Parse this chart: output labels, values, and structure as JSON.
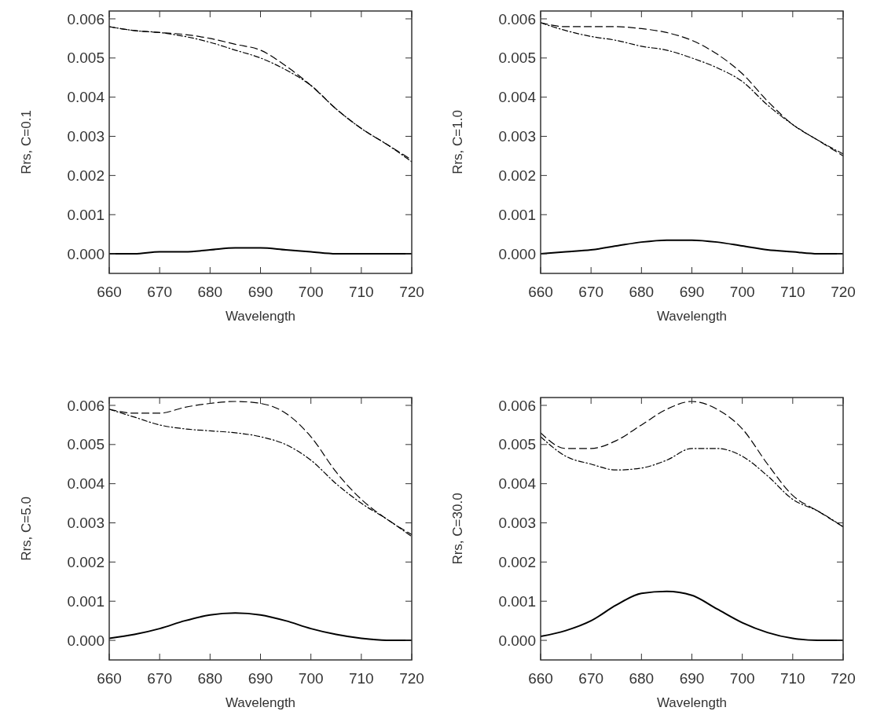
{
  "chart_data": [
    {
      "type": "line",
      "xlabel": "Wavelength",
      "ylabel": "Rrs,  C=0.1",
      "x": [
        660,
        665,
        670,
        675,
        680,
        685,
        690,
        695,
        700,
        705,
        710,
        715,
        720
      ],
      "xlim": [
        660,
        720
      ],
      "xticks": [
        660,
        670,
        680,
        690,
        700,
        710,
        720
      ],
      "ylim": [
        -0.0005,
        0.0062
      ],
      "yticks": [
        {
          "value": 0,
          "label": "0.000"
        },
        {
          "value": 0.001,
          "label": "0.001"
        },
        {
          "value": 0.002,
          "label": "0.002"
        },
        {
          "value": 0.003,
          "label": "0.003"
        },
        {
          "value": 0.004,
          "label": "0.004"
        },
        {
          "value": 0.005,
          "label": "0.005"
        },
        {
          "value": 0.006,
          "label": "0.006"
        }
      ],
      "grid": false,
      "series": [
        {
          "color": "#000000",
          "line_style": "dashed",
          "values": [
            0.0058,
            0.0057,
            0.00565,
            0.0056,
            0.0055,
            0.00535,
            0.0052,
            0.0048,
            0.0043,
            0.0037,
            0.0032,
            0.0028,
            0.0024
          ]
        },
        {
          "color": "#000000",
          "line_style": "dashdot",
          "values": [
            0.0058,
            0.0057,
            0.00565,
            0.00555,
            0.0054,
            0.0052,
            0.005,
            0.0047,
            0.0043,
            0.0037,
            0.0032,
            0.0028,
            0.00235
          ]
        },
        {
          "color": "#000000",
          "line_style": "solid",
          "values": [
            0,
            0,
            5e-05,
            5e-05,
            0.0001,
            0.00015,
            0.00015,
            0.0001,
            5e-05,
            0,
            0,
            0,
            0
          ]
        }
      ]
    },
    {
      "type": "line",
      "xlabel": "Wavelength",
      "ylabel": "Rrs,  C=1.0",
      "x": [
        660,
        665,
        670,
        675,
        680,
        685,
        690,
        695,
        700,
        705,
        710,
        715,
        720
      ],
      "xlim": [
        660,
        720
      ],
      "xticks": [
        660,
        670,
        680,
        690,
        700,
        710,
        720
      ],
      "ylim": [
        -0.0005,
        0.0062
      ],
      "yticks": [
        {
          "value": 0,
          "label": "0.000"
        },
        {
          "value": 0.001,
          "label": "0.001"
        },
        {
          "value": 0.002,
          "label": "0.002"
        },
        {
          "value": 0.003,
          "label": "0.003"
        },
        {
          "value": 0.004,
          "label": "0.004"
        },
        {
          "value": 0.005,
          "label": "0.005"
        },
        {
          "value": 0.006,
          "label": "0.006"
        }
      ],
      "grid": false,
      "series": [
        {
          "color": "#000000",
          "line_style": "dashed",
          "values": [
            0.0059,
            0.0058,
            0.0058,
            0.0058,
            0.00575,
            0.00565,
            0.00545,
            0.0051,
            0.0046,
            0.0039,
            0.0033,
            0.0029,
            0.0025
          ]
        },
        {
          "color": "#000000",
          "line_style": "dashdot",
          "values": [
            0.0059,
            0.0057,
            0.00555,
            0.00545,
            0.0053,
            0.0052,
            0.005,
            0.00475,
            0.0044,
            0.0038,
            0.0033,
            0.0029,
            0.00255
          ]
        },
        {
          "color": "#000000",
          "line_style": "solid",
          "values": [
            0,
            5e-05,
            0.0001,
            0.0002,
            0.0003,
            0.00035,
            0.00035,
            0.0003,
            0.0002,
            0.0001,
            5e-05,
            0,
            0
          ]
        }
      ]
    },
    {
      "type": "line",
      "xlabel": "Wavelength",
      "ylabel": "Rrs,  C=5.0",
      "x": [
        660,
        665,
        670,
        675,
        680,
        685,
        690,
        695,
        700,
        705,
        710,
        715,
        720
      ],
      "xlim": [
        660,
        720
      ],
      "xticks": [
        660,
        670,
        680,
        690,
        700,
        710,
        720
      ],
      "ylim": [
        -0.0005,
        0.0062
      ],
      "yticks": [
        {
          "value": 0,
          "label": "0.000"
        },
        {
          "value": 0.001,
          "label": "0.001"
        },
        {
          "value": 0.002,
          "label": "0.002"
        },
        {
          "value": 0.003,
          "label": "0.003"
        },
        {
          "value": 0.004,
          "label": "0.004"
        },
        {
          "value": 0.005,
          "label": "0.005"
        },
        {
          "value": 0.006,
          "label": "0.006"
        }
      ],
      "grid": false,
      "series": [
        {
          "color": "#000000",
          "line_style": "dashed",
          "values": [
            0.0059,
            0.0058,
            0.0058,
            0.00595,
            0.00605,
            0.0061,
            0.00605,
            0.0058,
            0.0052,
            0.0043,
            0.0036,
            0.0031,
            0.0027
          ]
        },
        {
          "color": "#000000",
          "line_style": "dashdot",
          "values": [
            0.0059,
            0.0057,
            0.0055,
            0.0054,
            0.00535,
            0.0053,
            0.0052,
            0.005,
            0.0046,
            0.004,
            0.0035,
            0.0031,
            0.00265
          ]
        },
        {
          "color": "#000000",
          "line_style": "solid",
          "values": [
            5e-05,
            0.00015,
            0.0003,
            0.0005,
            0.00065,
            0.0007,
            0.00065,
            0.0005,
            0.0003,
            0.00015,
            5e-05,
            0,
            0
          ]
        }
      ]
    },
    {
      "type": "line",
      "xlabel": "Wavelength",
      "ylabel": "Rrs,  C=30.0",
      "x": [
        660,
        665,
        670,
        675,
        680,
        685,
        690,
        695,
        700,
        705,
        710,
        715,
        720
      ],
      "xlim": [
        660,
        720
      ],
      "xticks": [
        660,
        670,
        680,
        690,
        700,
        710,
        720
      ],
      "ylim": [
        -0.0005,
        0.0062
      ],
      "yticks": [
        {
          "value": 0,
          "label": "0.000"
        },
        {
          "value": 0.001,
          "label": "0.001"
        },
        {
          "value": 0.002,
          "label": "0.002"
        },
        {
          "value": 0.003,
          "label": "0.003"
        },
        {
          "value": 0.004,
          "label": "0.004"
        },
        {
          "value": 0.005,
          "label": "0.005"
        },
        {
          "value": 0.006,
          "label": "0.006"
        }
      ],
      "grid": false,
      "series": [
        {
          "color": "#000000",
          "line_style": "dashed",
          "values": [
            0.0053,
            0.0049,
            0.0049,
            0.0051,
            0.0055,
            0.0059,
            0.0061,
            0.0059,
            0.0054,
            0.0045,
            0.0037,
            0.0033,
            0.0029
          ]
        },
        {
          "color": "#000000",
          "line_style": "dashdot",
          "values": [
            0.0052,
            0.0047,
            0.0045,
            0.00435,
            0.0044,
            0.0046,
            0.0049,
            0.0049,
            0.0047,
            0.0042,
            0.0036,
            0.0033,
            0.0029
          ]
        },
        {
          "color": "#000000",
          "line_style": "solid",
          "values": [
            0.0001,
            0.00025,
            0.0005,
            0.0009,
            0.0012,
            0.00125,
            0.00115,
            0.0008,
            0.00045,
            0.0002,
            5e-05,
            0,
            0
          ]
        }
      ]
    }
  ]
}
